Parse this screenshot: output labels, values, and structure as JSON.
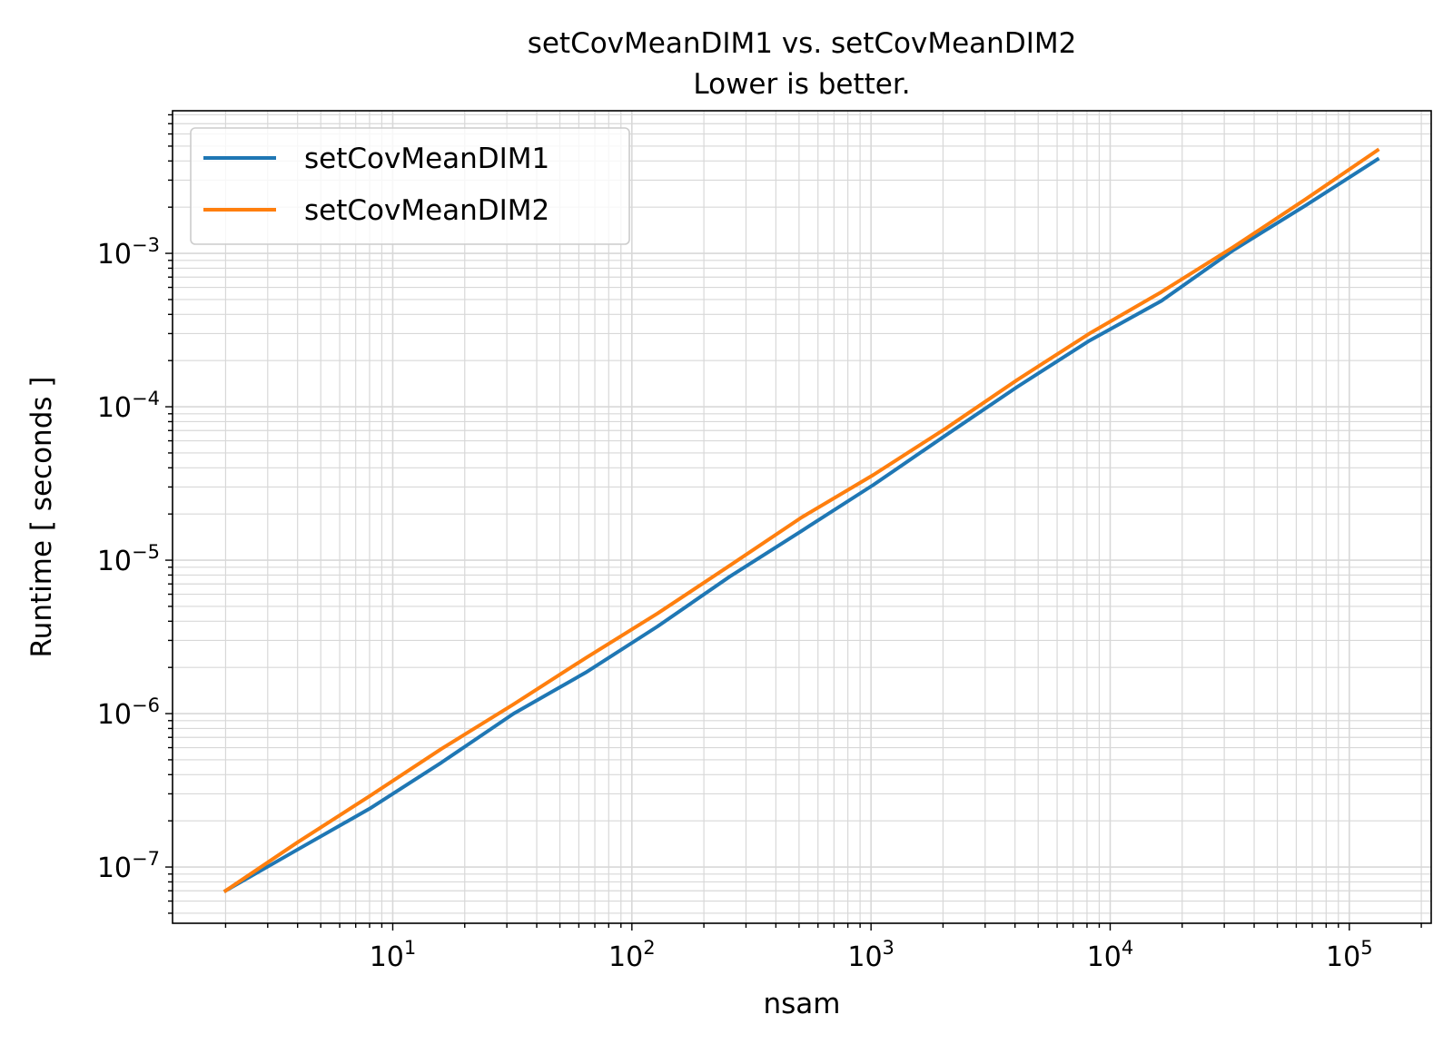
{
  "chart_data": {
    "type": "line",
    "title": "setCovMeanDIM1 vs. setCovMeanDIM2",
    "subtitle": "Lower is better.",
    "xlabel": "nsam",
    "ylabel": "Runtime [ seconds ]",
    "xscale": "log",
    "yscale": "log",
    "xlim": [
      1.2,
      220000
    ],
    "ylim": [
      4.3e-08,
      0.0085
    ],
    "grid": true,
    "grid_minor": true,
    "legend_position": "top-left",
    "x_ticks": [
      {
        "value": 10,
        "base": "10",
        "exp": "1"
      },
      {
        "value": 100,
        "base": "10",
        "exp": "2"
      },
      {
        "value": 1000,
        "base": "10",
        "exp": "3"
      },
      {
        "value": 10000,
        "base": "10",
        "exp": "4"
      },
      {
        "value": 100000,
        "base": "10",
        "exp": "5"
      }
    ],
    "y_ticks": [
      {
        "value": 1e-07,
        "base": "10",
        "exp": "−7"
      },
      {
        "value": 1e-06,
        "base": "10",
        "exp": "−6"
      },
      {
        "value": 1e-05,
        "base": "10",
        "exp": "−5"
      },
      {
        "value": 0.0001,
        "base": "10",
        "exp": "−4"
      },
      {
        "value": 0.001,
        "base": "10",
        "exp": "−3"
      }
    ],
    "x": [
      2,
      4,
      8,
      16,
      32,
      64,
      128,
      256,
      512,
      1024,
      2048,
      4096,
      8192,
      16384,
      32768,
      65536,
      131072
    ],
    "series": [
      {
        "name": "setCovMeanDIM1",
        "color": "#1f77b4",
        "values": [
          7e-08,
          1.3e-07,
          2.4e-07,
          4.8e-07,
          1e-06,
          1.85e-06,
          3.7e-06,
          7.8e-06,
          1.55e-05,
          3.1e-05,
          6.5e-05,
          0.000135,
          0.00027,
          0.00049,
          0.00105,
          0.00205,
          0.0041
        ]
      },
      {
        "name": "setCovMeanDIM2",
        "color": "#ff7f0e",
        "values": [
          7e-08,
          1.45e-07,
          2.9e-07,
          5.9e-07,
          1.15e-06,
          2.3e-06,
          4.5e-06,
          9.2e-06,
          1.9e-05,
          3.6e-05,
          7.2e-05,
          0.00015,
          0.0003,
          0.00056,
          0.0011,
          0.00225,
          0.0047
        ]
      }
    ]
  }
}
